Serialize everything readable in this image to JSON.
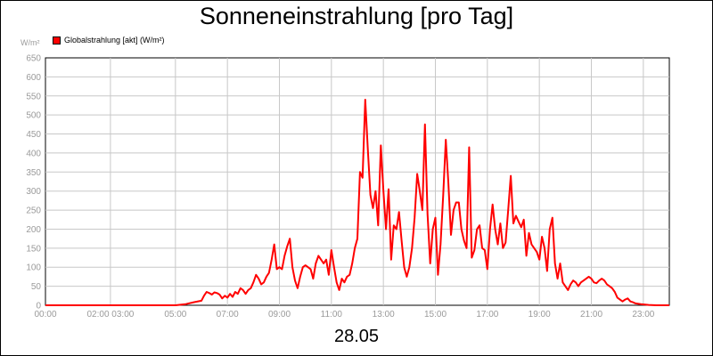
{
  "chart_data": {
    "type": "line",
    "title": "Sonneneinstrahlung [pro Tag]",
    "unit_label": "W/m²",
    "xlabel": "28.05",
    "ylim": [
      0,
      650
    ],
    "yticks": [
      0,
      50,
      100,
      150,
      200,
      250,
      300,
      350,
      400,
      450,
      500,
      550,
      600,
      650
    ],
    "xlim": [
      0,
      24
    ],
    "xticks": [
      {
        "hour": 0,
        "label": "00:00"
      },
      {
        "hour": 2.5,
        "label": "02:00 03:00"
      },
      {
        "hour": 5,
        "label": "05:00"
      },
      {
        "hour": 7,
        "label": "07:00"
      },
      {
        "hour": 9,
        "label": "09:00"
      },
      {
        "hour": 11,
        "label": "11:00"
      },
      {
        "hour": 13,
        "label": "13:00"
      },
      {
        "hour": 15,
        "label": "15:00"
      },
      {
        "hour": 17,
        "label": "17:00"
      },
      {
        "hour": 19,
        "label": "19:00"
      },
      {
        "hour": 21,
        "label": "21:00"
      },
      {
        "hour": 23,
        "label": "23:00"
      }
    ],
    "grid": true,
    "legend_position": "top-left",
    "series": [
      {
        "name": "Globalstrahlung [akt] (W/m²)",
        "color": "#ff0000",
        "points": [
          [
            0.0,
            0
          ],
          [
            5.0,
            0
          ],
          [
            5.4,
            3
          ],
          [
            5.7,
            8
          ],
          [
            6.0,
            12
          ],
          [
            6.1,
            25
          ],
          [
            6.2,
            35
          ],
          [
            6.3,
            32
          ],
          [
            6.4,
            28
          ],
          [
            6.5,
            34
          ],
          [
            6.6,
            32
          ],
          [
            6.7,
            28
          ],
          [
            6.8,
            18
          ],
          [
            6.9,
            25
          ],
          [
            7.0,
            20
          ],
          [
            7.1,
            30
          ],
          [
            7.2,
            22
          ],
          [
            7.3,
            35
          ],
          [
            7.4,
            30
          ],
          [
            7.5,
            45
          ],
          [
            7.6,
            40
          ],
          [
            7.7,
            30
          ],
          [
            7.8,
            40
          ],
          [
            7.9,
            45
          ],
          [
            8.0,
            60
          ],
          [
            8.1,
            80
          ],
          [
            8.2,
            70
          ],
          [
            8.3,
            55
          ],
          [
            8.4,
            60
          ],
          [
            8.5,
            75
          ],
          [
            8.6,
            85
          ],
          [
            8.7,
            120
          ],
          [
            8.8,
            160
          ],
          [
            8.9,
            95
          ],
          [
            9.0,
            100
          ],
          [
            9.1,
            95
          ],
          [
            9.2,
            130
          ],
          [
            9.3,
            155
          ],
          [
            9.4,
            175
          ],
          [
            9.5,
            100
          ],
          [
            9.6,
            65
          ],
          [
            9.7,
            45
          ],
          [
            9.8,
            75
          ],
          [
            9.9,
            100
          ],
          [
            10.0,
            105
          ],
          [
            10.1,
            100
          ],
          [
            10.2,
            95
          ],
          [
            10.3,
            70
          ],
          [
            10.4,
            110
          ],
          [
            10.5,
            130
          ],
          [
            10.6,
            120
          ],
          [
            10.7,
            110
          ],
          [
            10.8,
            120
          ],
          [
            10.9,
            80
          ],
          [
            11.0,
            145
          ],
          [
            11.1,
            100
          ],
          [
            11.2,
            60
          ],
          [
            11.3,
            40
          ],
          [
            11.4,
            70
          ],
          [
            11.5,
            60
          ],
          [
            11.6,
            75
          ],
          [
            11.7,
            80
          ],
          [
            11.8,
            110
          ],
          [
            11.9,
            150
          ],
          [
            12.0,
            175
          ],
          [
            12.1,
            350
          ],
          [
            12.2,
            335
          ],
          [
            12.3,
            540
          ],
          [
            12.4,
            410
          ],
          [
            12.5,
            290
          ],
          [
            12.6,
            255
          ],
          [
            12.7,
            300
          ],
          [
            12.8,
            210
          ],
          [
            12.9,
            420
          ],
          [
            13.0,
            300
          ],
          [
            13.1,
            200
          ],
          [
            13.2,
            305
          ],
          [
            13.3,
            120
          ],
          [
            13.4,
            210
          ],
          [
            13.5,
            200
          ],
          [
            13.6,
            245
          ],
          [
            13.7,
            170
          ],
          [
            13.8,
            100
          ],
          [
            13.9,
            75
          ],
          [
            14.0,
            100
          ],
          [
            14.1,
            150
          ],
          [
            14.2,
            230
          ],
          [
            14.3,
            345
          ],
          [
            14.4,
            300
          ],
          [
            14.5,
            250
          ],
          [
            14.6,
            475
          ],
          [
            14.7,
            240
          ],
          [
            14.8,
            110
          ],
          [
            14.9,
            200
          ],
          [
            15.0,
            230
          ],
          [
            15.1,
            80
          ],
          [
            15.2,
            160
          ],
          [
            15.3,
            290
          ],
          [
            15.4,
            435
          ],
          [
            15.5,
            320
          ],
          [
            15.6,
            185
          ],
          [
            15.7,
            250
          ],
          [
            15.8,
            270
          ],
          [
            15.9,
            270
          ],
          [
            16.0,
            200
          ],
          [
            16.1,
            170
          ],
          [
            16.2,
            150
          ],
          [
            16.3,
            415
          ],
          [
            16.4,
            125
          ],
          [
            16.5,
            145
          ],
          [
            16.6,
            200
          ],
          [
            16.7,
            210
          ],
          [
            16.8,
            150
          ],
          [
            16.9,
            145
          ],
          [
            17.0,
            95
          ],
          [
            17.1,
            200
          ],
          [
            17.2,
            265
          ],
          [
            17.3,
            200
          ],
          [
            17.4,
            160
          ],
          [
            17.5,
            215
          ],
          [
            17.6,
            150
          ],
          [
            17.7,
            165
          ],
          [
            17.8,
            250
          ],
          [
            17.9,
            340
          ],
          [
            18.0,
            215
          ],
          [
            18.1,
            235
          ],
          [
            18.2,
            220
          ],
          [
            18.3,
            205
          ],
          [
            18.4,
            225
          ],
          [
            18.5,
            130
          ],
          [
            18.6,
            190
          ],
          [
            18.7,
            160
          ],
          [
            18.8,
            150
          ],
          [
            18.9,
            140
          ],
          [
            19.0,
            120
          ],
          [
            19.1,
            180
          ],
          [
            19.2,
            150
          ],
          [
            19.3,
            90
          ],
          [
            19.4,
            200
          ],
          [
            19.5,
            230
          ],
          [
            19.6,
            110
          ],
          [
            19.7,
            70
          ],
          [
            19.8,
            110
          ],
          [
            19.9,
            60
          ],
          [
            20.0,
            50
          ],
          [
            20.1,
            40
          ],
          [
            20.2,
            55
          ],
          [
            20.3,
            65
          ],
          [
            20.4,
            60
          ],
          [
            20.5,
            50
          ],
          [
            20.6,
            60
          ],
          [
            20.7,
            65
          ],
          [
            20.8,
            70
          ],
          [
            20.9,
            75
          ],
          [
            21.0,
            70
          ],
          [
            21.1,
            60
          ],
          [
            21.2,
            58
          ],
          [
            21.3,
            65
          ],
          [
            21.4,
            70
          ],
          [
            21.5,
            65
          ],
          [
            21.6,
            55
          ],
          [
            21.7,
            50
          ],
          [
            21.8,
            45
          ],
          [
            21.9,
            35
          ],
          [
            22.0,
            20
          ],
          [
            22.1,
            15
          ],
          [
            22.2,
            10
          ],
          [
            22.3,
            15
          ],
          [
            22.4,
            18
          ],
          [
            22.5,
            10
          ],
          [
            22.6,
            8
          ],
          [
            22.7,
            5
          ],
          [
            22.9,
            3
          ],
          [
            23.2,
            1
          ],
          [
            23.5,
            0
          ],
          [
            24.0,
            0
          ]
        ]
      }
    ]
  }
}
